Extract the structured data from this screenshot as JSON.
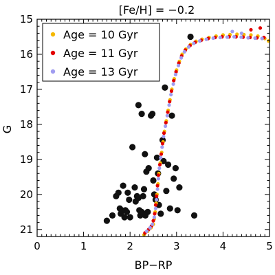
{
  "chart_data": {
    "type": "scatter",
    "title": "[Fe/H] = −0.2",
    "xlabel": "BP−RP",
    "ylabel": "G",
    "xlim": [
      0,
      5
    ],
    "ylim": [
      21.2,
      15
    ],
    "y_inverted": true,
    "x_ticks": [
      0,
      1,
      2,
      3,
      4,
      5
    ],
    "y_ticks": [
      15,
      16,
      17,
      18,
      19,
      20,
      21
    ],
    "legend_position": "top-left",
    "grid": false,
    "series": [
      {
        "name": "Age = 10 Gyr",
        "color": "#f5b800",
        "points": [
          [
            2.3,
            21.15
          ],
          [
            2.38,
            21.05
          ],
          [
            2.45,
            20.95
          ],
          [
            2.5,
            20.85
          ],
          [
            2.52,
            20.7
          ],
          [
            2.54,
            20.5
          ],
          [
            2.56,
            20.25
          ],
          [
            2.58,
            20.0
          ],
          [
            2.6,
            19.7
          ],
          [
            2.62,
            19.4
          ],
          [
            2.65,
            19.1
          ],
          [
            2.68,
            18.8
          ],
          [
            2.71,
            18.5
          ],
          [
            2.74,
            18.2
          ],
          [
            2.78,
            17.9
          ],
          [
            2.82,
            17.6
          ],
          [
            2.86,
            17.3
          ],
          [
            2.9,
            17.0
          ],
          [
            2.95,
            16.7
          ],
          [
            3.0,
            16.45
          ],
          [
            3.06,
            16.2
          ],
          [
            3.12,
            16.0
          ],
          [
            3.2,
            15.85
          ],
          [
            3.3,
            15.72
          ],
          [
            3.42,
            15.63
          ],
          [
            3.55,
            15.57
          ],
          [
            3.7,
            15.52
          ],
          [
            3.85,
            15.48
          ],
          [
            4.0,
            15.45
          ],
          [
            4.15,
            15.44
          ],
          [
            4.3,
            15.43
          ],
          [
            4.45,
            15.44
          ],
          [
            4.6,
            15.45
          ],
          [
            4.75,
            15.48
          ],
          [
            4.9,
            15.55
          ],
          [
            4.98,
            15.62
          ]
        ]
      },
      {
        "name": "Age = 11 Gyr",
        "color": "#e30000",
        "points": [
          [
            2.32,
            21.1
          ],
          [
            2.4,
            21.0
          ],
          [
            2.46,
            20.9
          ],
          [
            2.5,
            20.75
          ],
          [
            2.53,
            20.55
          ],
          [
            2.55,
            20.3
          ],
          [
            2.57,
            20.05
          ],
          [
            2.59,
            19.75
          ],
          [
            2.61,
            19.45
          ],
          [
            2.64,
            19.15
          ],
          [
            2.67,
            18.85
          ],
          [
            2.7,
            18.55
          ],
          [
            2.73,
            18.25
          ],
          [
            2.77,
            17.95
          ],
          [
            2.81,
            17.65
          ],
          [
            2.85,
            17.35
          ],
          [
            2.89,
            17.05
          ],
          [
            2.94,
            16.75
          ],
          [
            2.99,
            16.5
          ],
          [
            3.05,
            16.25
          ],
          [
            3.11,
            16.05
          ],
          [
            3.19,
            15.88
          ],
          [
            3.29,
            15.75
          ],
          [
            3.4,
            15.66
          ],
          [
            3.53,
            15.6
          ],
          [
            3.68,
            15.55
          ],
          [
            3.83,
            15.52
          ],
          [
            3.98,
            15.5
          ],
          [
            4.13,
            15.5
          ],
          [
            4.28,
            15.5
          ],
          [
            4.43,
            15.51
          ],
          [
            4.58,
            15.52
          ],
          [
            4.73,
            15.53
          ],
          [
            4.88,
            15.52
          ],
          [
            4.8,
            15.25
          ],
          [
            4.6,
            15.3
          ]
        ]
      },
      {
        "name": "Age = 13 Gyr",
        "color": "#a09cf0",
        "points": [
          [
            2.36,
            21.05
          ],
          [
            2.43,
            20.95
          ],
          [
            2.48,
            20.85
          ],
          [
            2.52,
            20.65
          ],
          [
            2.55,
            20.4
          ],
          [
            2.57,
            20.15
          ],
          [
            2.59,
            19.85
          ],
          [
            2.61,
            19.55
          ],
          [
            2.63,
            19.25
          ],
          [
            2.66,
            18.95
          ],
          [
            2.69,
            18.65
          ],
          [
            2.72,
            18.35
          ],
          [
            2.76,
            18.05
          ],
          [
            2.8,
            17.75
          ],
          [
            2.84,
            17.45
          ],
          [
            2.88,
            17.15
          ],
          [
            2.93,
            16.85
          ],
          [
            2.98,
            16.58
          ],
          [
            3.04,
            16.32
          ],
          [
            3.1,
            16.1
          ],
          [
            3.17,
            15.93
          ],
          [
            3.26,
            15.79
          ],
          [
            3.37,
            15.69
          ],
          [
            3.5,
            15.62
          ],
          [
            3.64,
            15.57
          ],
          [
            3.79,
            15.54
          ],
          [
            3.94,
            15.52
          ],
          [
            4.09,
            15.51
          ],
          [
            4.24,
            15.5
          ],
          [
            4.39,
            15.51
          ],
          [
            4.54,
            15.53
          ],
          [
            4.69,
            15.54
          ],
          [
            4.84,
            15.55
          ],
          [
            4.2,
            15.35
          ],
          [
            4.4,
            15.4
          ]
        ]
      },
      {
        "name": "",
        "color": "#111111",
        "points": [
          [
            1.5,
            20.75
          ],
          [
            1.62,
            20.6
          ],
          [
            1.7,
            20.05
          ],
          [
            1.75,
            19.95
          ],
          [
            1.78,
            20.4
          ],
          [
            1.8,
            20.55
          ],
          [
            1.82,
            20.45
          ],
          [
            1.85,
            19.75
          ],
          [
            1.88,
            20.65
          ],
          [
            1.9,
            20.45
          ],
          [
            1.93,
            20.5
          ],
          [
            1.95,
            19.95
          ],
          [
            1.98,
            20.15
          ],
          [
            2.0,
            20.65
          ],
          [
            2.05,
            18.65
          ],
          [
            2.1,
            19.8
          ],
          [
            2.12,
            20.2
          ],
          [
            2.15,
            20.05
          ],
          [
            2.18,
            20.1
          ],
          [
            2.2,
            20.45
          ],
          [
            2.22,
            20.6
          ],
          [
            2.25,
            20.5
          ],
          [
            2.28,
            20.05
          ],
          [
            2.3,
            19.85
          ],
          [
            2.32,
            18.85
          ],
          [
            2.33,
            20.6
          ],
          [
            2.35,
            19.35
          ],
          [
            2.38,
            20.5
          ],
          [
            2.4,
            19.25
          ],
          [
            2.45,
            17.75
          ],
          [
            2.48,
            17.7
          ],
          [
            2.5,
            19.6
          ],
          [
            2.52,
            20.0
          ],
          [
            2.55,
            20.15
          ],
          [
            2.58,
            18.95
          ],
          [
            2.6,
            19.4
          ],
          [
            2.62,
            20.3
          ],
          [
            2.66,
            20.55
          ],
          [
            2.7,
            18.45
          ],
          [
            2.72,
            19.05
          ],
          [
            2.75,
            16.95
          ],
          [
            2.78,
            19.9
          ],
          [
            2.82,
            19.15
          ],
          [
            2.86,
            20.4
          ],
          [
            2.9,
            17.75
          ],
          [
            2.94,
            19.55
          ],
          [
            2.98,
            19.25
          ],
          [
            3.02,
            20.45
          ],
          [
            3.06,
            19.8
          ],
          [
            3.38,
            20.6
          ],
          [
            3.3,
            15.5
          ],
          [
            2.18,
            17.45
          ],
          [
            2.25,
            17.7
          ]
        ]
      }
    ]
  }
}
